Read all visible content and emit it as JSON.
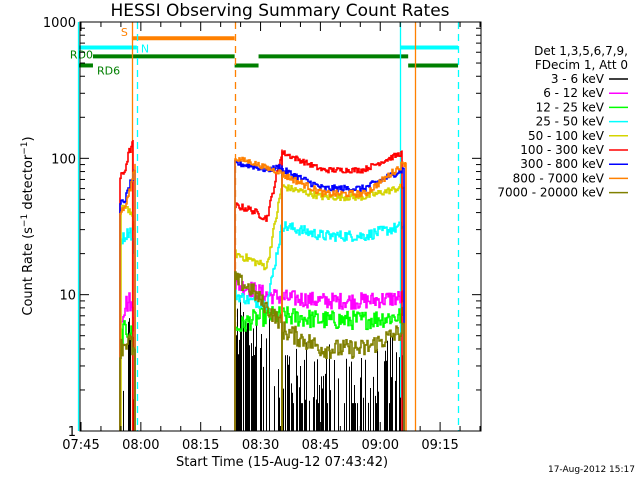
{
  "chart_data": {
    "type": "line",
    "title": "HESSI Observing Summary Count Rates",
    "xlabel": "Start Time (15-Aug-12 07:43:42)",
    "ylabel": "Count Rate (s⁻¹ detector⁻¹)",
    "ylabel_parts": {
      "main": "Count Rate (s",
      "sup1": "−1",
      "mid": " detector",
      "sup2": "−1",
      "end": ")"
    },
    "yscale": "log",
    "ylim": [
      1,
      1000
    ],
    "xlim_minutes": [
      -0.25,
      100.25
    ],
    "x_ref_time": "07:45",
    "x_ticks": [
      {
        "label": "07:45",
        "min": 0
      },
      {
        "label": "08:00",
        "min": 15
      },
      {
        "label": "08:15",
        "min": 30
      },
      {
        "label": "08:30",
        "min": 45
      },
      {
        "label": "08:45",
        "min": 60
      },
      {
        "label": "09:00",
        "min": 75
      },
      {
        "label": "09:15",
        "min": 90
      }
    ],
    "y_ticks": [
      {
        "label": "1",
        "value": 1
      },
      {
        "label": "10",
        "value": 10
      },
      {
        "label": "100",
        "value": 100
      },
      {
        "label": "1000",
        "value": 1000
      }
    ],
    "legend": {
      "header": [
        "Det 1,3,5,6,7,9,",
        "FDecim 1, Att 0"
      ],
      "placement": "right"
    },
    "series": [
      {
        "name": "3 - 6 keV",
        "color": "#000000",
        "segments": [
          {
            "start": 10.5,
            "end": 13.5,
            "levels": [
              1.0,
              3.0,
              3.0,
              1.0
            ],
            "noise": 0.5,
            "bars": true
          },
          {
            "start": 38.5,
            "end": 50.5,
            "levels": [
              3.5,
              3.0,
              2.5,
              1.8
            ],
            "noise": 0.5,
            "bars": true
          },
          {
            "start": 50.5,
            "end": 80.5,
            "levels": [
              1.8,
              1.4,
              1.4,
              1.8
            ],
            "noise": 0.6,
            "bars": true
          }
        ]
      },
      {
        "name": "6 - 12 keV",
        "color": "#ff00ff",
        "segments": [
          {
            "start": 9.75,
            "end": 13.5,
            "levels": [
              6.5,
              8.5,
              9.0,
              6.0
            ],
            "noise": 0.15
          },
          {
            "start": 38.5,
            "end": 50.5,
            "levels": [
              12.0,
              11.0,
              10.0,
              9.5
            ],
            "noise": 0.12
          },
          {
            "start": 50.5,
            "end": 81.0,
            "levels": [
              9.5,
              9.0,
              9.0,
              9.5
            ],
            "noise": 0.12
          }
        ]
      },
      {
        "name": "12 - 25 keV",
        "color": "#00ff00",
        "segments": [
          {
            "start": 9.75,
            "end": 13.5,
            "levels": [
              5.0,
              5.5,
              5.5,
              4.0
            ],
            "noise": 0.15
          },
          {
            "start": 38.5,
            "end": 50.5,
            "levels": [
              5.5,
              6.5,
              7.0,
              7.0
            ],
            "noise": 0.14
          },
          {
            "start": 50.5,
            "end": 81.0,
            "levels": [
              7.0,
              6.5,
              6.5,
              7.0
            ],
            "noise": 0.14
          }
        ]
      },
      {
        "name": "25 - 50 keV",
        "color": "#00ffff",
        "segments": [
          {
            "start": 9.75,
            "end": 13.5,
            "levels": [
              25.0,
              27.0,
              30.0,
              20.0
            ],
            "noise": 0.08
          },
          {
            "start": 38.5,
            "end": 50.5,
            "levels": [
              10.0,
              9.0,
              8.5,
              34.0
            ],
            "noise": 0.08
          },
          {
            "start": 50.5,
            "end": 81.0,
            "levels": [
              32.0,
              27.0,
              27.0,
              32.0
            ],
            "noise": 0.08
          }
        ]
      },
      {
        "name": "50 - 100 keV",
        "color": "#d4d400",
        "segments": [
          {
            "start": 10.0,
            "end": 13.5,
            "levels": [
              42.0,
              45.0,
              40.0,
              30.0
            ],
            "noise": 0.05
          },
          {
            "start": 38.5,
            "end": 50.5,
            "levels": [
              20.0,
              18.0,
              16.0,
              68.0
            ],
            "noise": 0.06
          },
          {
            "start": 50.5,
            "end": 81.0,
            "levels": [
              62.0,
              52.0,
              52.0,
              62.0
            ],
            "noise": 0.05
          }
        ]
      },
      {
        "name": "100 - 300 keV",
        "color": "#ff0000",
        "segments": [
          {
            "start": 9.75,
            "end": 13.0,
            "levels": [
              72.0,
              80.0,
              110.0,
              130.0
            ],
            "noise": 0.05
          },
          {
            "start": 38.5,
            "end": 50.5,
            "levels": [
              45.0,
              42.0,
              36.0,
              120.0
            ],
            "noise": 0.05
          },
          {
            "start": 50.5,
            "end": 80.5,
            "levels": [
              110.0,
              82.0,
              82.0,
              110.0
            ],
            "noise": 0.04
          }
        ]
      },
      {
        "name": "300 - 800 keV",
        "color": "#0000ff",
        "segments": [
          {
            "start": 9.75,
            "end": 13.5,
            "levels": [
              46.0,
              50.0,
              65.0,
              80.0
            ],
            "noise": 0.05
          },
          {
            "start": 38.5,
            "end": 50.5,
            "levels": [
              92.0,
              88.0,
              82.0,
              88.0
            ],
            "noise": 0.04
          },
          {
            "start": 50.5,
            "end": 81.0,
            "levels": [
              82.0,
              60.0,
              60.0,
              84.0
            ],
            "noise": 0.05
          }
        ]
      },
      {
        "name": "800 - 7000 keV",
        "color": "#ff8000",
        "segments": [
          {
            "start": 9.75,
            "end": 13.5,
            "levels": [
              40.0,
              44.0,
              60.0,
              90.0
            ],
            "noise": 0.04
          },
          {
            "start": 38.5,
            "end": 50.5,
            "levels": [
              100.0,
              94.0,
              85.0,
              78.0
            ],
            "noise": 0.04
          },
          {
            "start": 50.5,
            "end": 81.5,
            "levels": [
              76.0,
              55.0,
              55.0,
              95.0
            ],
            "noise": 0.05
          }
        ]
      },
      {
        "name": "7000 - 20000 keV",
        "color": "#808000",
        "segments": [
          {
            "start": 9.75,
            "end": 13.5,
            "levels": [
              4.0,
              4.5,
              4.5,
              3.5
            ],
            "noise": 0.15
          },
          {
            "start": 38.5,
            "end": 50.5,
            "levels": [
              13.0,
              11.0,
              8.0,
              6.0
            ],
            "noise": 0.12
          },
          {
            "start": 50.5,
            "end": 81.0,
            "levels": [
              5.5,
              4.0,
              4.0,
              5.5
            ],
            "noise": 0.14
          }
        ]
      }
    ],
    "vertical_markers": [
      {
        "min": -0.75,
        "color": "#00ffff",
        "style": "solid"
      },
      {
        "min": 12.75,
        "color": "#ff8000",
        "style": "solid"
      },
      {
        "min": 14.0,
        "color": "#00ffff",
        "style": "dashed"
      },
      {
        "min": 38.5,
        "color": "#ff8000",
        "style": "dashed"
      },
      {
        "min": 80.0,
        "color": "#00ffff",
        "style": "solid"
      },
      {
        "min": 83.75,
        "color": "#ff8000",
        "style": "solid"
      },
      {
        "min": 94.5,
        "color": "#00ffff",
        "style": "dashed"
      }
    ],
    "state_bars": [
      {
        "label": "S",
        "color": "#ff8000",
        "value": 760,
        "start": 12.75,
        "end": 38.5
      },
      {
        "label": "N",
        "color": "#00ffff",
        "value": 650,
        "start": -0.75,
        "end": 14.0
      },
      {
        "label": "",
        "color": "#00ffff",
        "value": 650,
        "start": 80.0,
        "end": 94.5
      },
      {
        "label": "RD0",
        "color": "#007f00",
        "value": 560,
        "start": 3.0,
        "end": 38.5
      },
      {
        "label": "",
        "color": "#007f00",
        "value": 560,
        "start": 44.5,
        "end": 82.0
      },
      {
        "label": "RD6",
        "color": "#007f00",
        "value": 480,
        "start": -0.75,
        "end": 3.0
      },
      {
        "label": "",
        "color": "#007f00",
        "value": 480,
        "start": 38.5,
        "end": 44.5
      },
      {
        "label": "",
        "color": "#007f00",
        "value": 480,
        "start": 82.0,
        "end": 94.5
      }
    ]
  },
  "footer": {
    "timestamp": "17-Aug-2012 15:17"
  }
}
